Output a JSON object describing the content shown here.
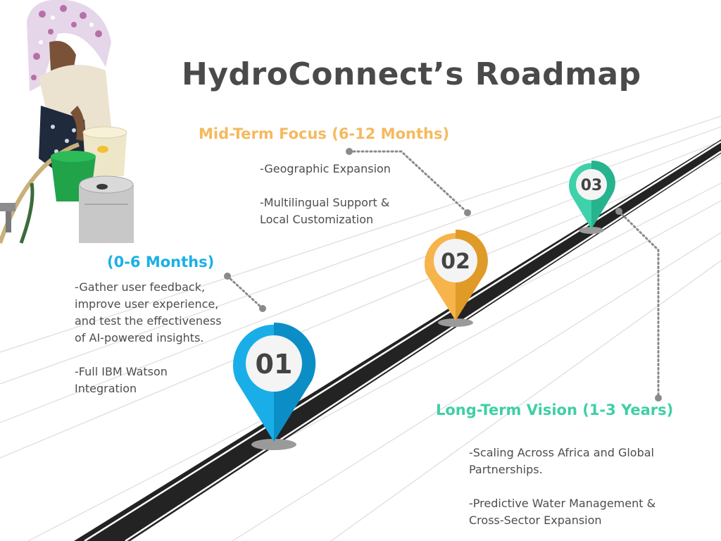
{
  "title": "HydroConnect’s Roadmap",
  "milestones": [
    {
      "number": "01",
      "heading": "(0-6 Months)",
      "color": "#1ab0e6",
      "items": [
        " -Gather user feedback, improve user experience, and test the effectiveness of AI-powered insights.",
        "-Full IBM Watson Integration"
      ]
    },
    {
      "number": "02",
      "heading": "Mid-Term Focus (6-12 Months)",
      "color": "#f5b95f",
      "items": [
        "-Geographic Expansion",
        "-Multilingual Support & Local Customization"
      ]
    },
    {
      "number": "03",
      "heading": "Long-Term Vision (1-3 Years)",
      "color": "#3ecfa6",
      "items": [
        "-Scaling Across Africa and Global Partnerships.",
        "-Predictive Water Management & Cross-Sector Expansion"
      ]
    }
  ],
  "colors": {
    "title": "#4a4a4a",
    "road": "#232323",
    "connector": "#8a8a8a",
    "body_text": "#4d4d4d"
  },
  "icons": [
    "map-pin-icon"
  ]
}
